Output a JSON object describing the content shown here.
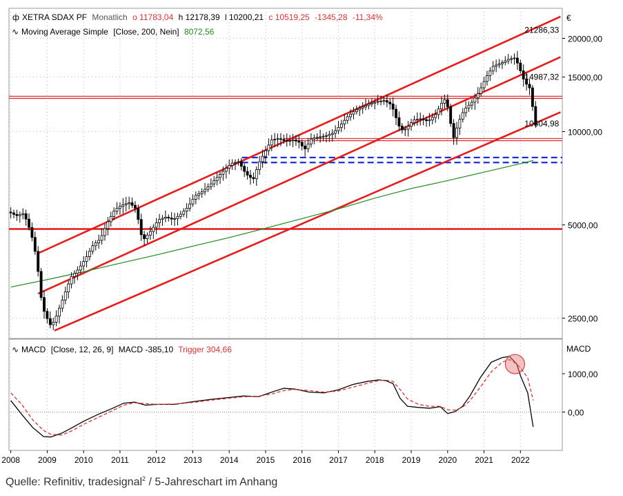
{
  "chart_data": [
    {
      "type": "line",
      "panel": "price",
      "scale": "log",
      "currency_label": "€",
      "legend": {
        "instrument": "XETRA SDAX PF",
        "interval": "Monatlich",
        "open": "o 11783,04",
        "high": "h 12178,39",
        "low": "l 10200,21",
        "close": "c 10519,25",
        "change": "-1345,28",
        "change_pct": "-11,34%",
        "ma_label": "Moving Average Simple",
        "ma_params": "[Close, 200, Nein]",
        "ma_value": "8072,56"
      },
      "y_ticks": [
        "20000,00",
        "15000,00",
        "10000,00",
        "5000,00",
        "2500,00"
      ],
      "y_tick_values": [
        20000,
        15000,
        10000,
        5000,
        2500
      ],
      "ylim": [
        2150,
        25000
      ],
      "x_ticks": [
        "2008",
        "2009",
        "2010",
        "2011",
        "2012",
        "2013",
        "2014",
        "2015",
        "2016",
        "2017",
        "2018",
        "2019",
        "2020",
        "2021",
        "2022"
      ],
      "x_tick_values": [
        2008,
        2009,
        2010,
        2011,
        2012,
        2013,
        2014,
        2015,
        2016,
        2017,
        2018,
        2019,
        2020,
        2021,
        2022
      ],
      "xlim": [
        2007.95,
        2023.15
      ],
      "annotations": [
        {
          "label": "21286,33",
          "value": 21286.33,
          "x": 2023.1
        },
        {
          "label": "14987,32",
          "value": 14987.32,
          "x": 2023.1
        },
        {
          "label": "10604,98",
          "value": 10604.98,
          "x": 2023.1
        }
      ],
      "price_series": {
        "x": [
          2008.0,
          2008.2,
          2008.4,
          2008.6,
          2008.75,
          2008.9,
          2009.0,
          2009.15,
          2009.3,
          2009.5,
          2009.7,
          2009.9,
          2010.1,
          2010.3,
          2010.5,
          2010.7,
          2010.9,
          2011.1,
          2011.3,
          2011.5,
          2011.6,
          2011.7,
          2011.9,
          2012.1,
          2012.3,
          2012.5,
          2012.7,
          2012.9,
          2013.1,
          2013.3,
          2013.5,
          2013.7,
          2013.9,
          2014.1,
          2014.3,
          2014.5,
          2014.7,
          2014.85,
          2015.0,
          2015.2,
          2015.4,
          2015.6,
          2015.8,
          2016.0,
          2016.1,
          2016.3,
          2016.5,
          2016.7,
          2016.9,
          2017.1,
          2017.3,
          2017.5,
          2017.7,
          2017.9,
          2018.1,
          2018.3,
          2018.5,
          2018.6,
          2018.75,
          2018.9,
          2019.1,
          2019.3,
          2019.5,
          2019.7,
          2019.9,
          2020.0,
          2020.2,
          2020.35,
          2020.5,
          2020.7,
          2020.9,
          2021.1,
          2021.3,
          2021.5,
          2021.7,
          2021.9,
          2022.0,
          2022.15,
          2022.3,
          2022.45
        ],
        "values": [
          5500,
          5350,
          5450,
          4700,
          3900,
          2750,
          2550,
          2350,
          2550,
          2950,
          3400,
          3600,
          3900,
          4300,
          4500,
          5100,
          5600,
          5800,
          5900,
          5600,
          4700,
          4500,
          4800,
          5200,
          5300,
          5200,
          5400,
          5700,
          6200,
          6400,
          6700,
          7100,
          7500,
          7900,
          8000,
          7300,
          7000,
          7900,
          8500,
          9400,
          9500,
          9300,
          9400,
          9200,
          8700,
          9500,
          9600,
          9700,
          9900,
          10500,
          11200,
          11700,
          12000,
          12300,
          12500,
          12600,
          12200,
          11300,
          10100,
          10200,
          10900,
          11000,
          10800,
          11300,
          12500,
          12800,
          9500,
          10800,
          11800,
          12400,
          13400,
          15000,
          16300,
          16600,
          17100,
          17300,
          16200,
          14500,
          13800,
          10520
        ]
      },
      "ma_series": {
        "name": "Moving Average Simple",
        "x": [
          2008.0,
          2009.0,
          2010.0,
          2011.0,
          2012.0,
          2013.0,
          2014.0,
          2015.0,
          2016.0,
          2017.0,
          2018.0,
          2019.0,
          2020.0,
          2021.0,
          2022.0,
          2022.35
        ],
        "values": [
          3150,
          3330,
          3530,
          3760,
          4000,
          4270,
          4550,
          4880,
          5240,
          5630,
          6100,
          6550,
          6950,
          7400,
          7880,
          8072.56
        ]
      },
      "channel_lines": [
        {
          "from": [
            2008.75,
            4050
          ],
          "to": [
            2023.1,
            23500
          ]
        },
        {
          "from": [
            2008.75,
            3000
          ],
          "to": [
            2023.1,
            17400
          ]
        },
        {
          "from": [
            2009.2,
            2280
          ],
          "to": [
            2023.1,
            11550
          ]
        }
      ],
      "horizontal_lines": [
        {
          "value": 13000,
          "color": "#e03030",
          "style": "solid"
        },
        {
          "value": 12800,
          "color": "#e03030",
          "style": "solid"
        },
        {
          "value": 9500,
          "color": "#e03030",
          "style": "solid",
          "from_x": 2015.5
        },
        {
          "value": 9350,
          "color": "#e03030",
          "style": "solid",
          "from_x": 2015.5
        },
        {
          "value": 4850,
          "color": "#e01818",
          "style": "solid"
        },
        {
          "value": 8250,
          "color": "#1a2fd0",
          "style": "dashed",
          "from_x": 2014.35
        },
        {
          "value": 7950,
          "color": "#1a2fd0",
          "style": "dashed",
          "from_x": 2014.35
        }
      ]
    },
    {
      "type": "line",
      "panel": "macd",
      "legend": {
        "label": "MACD",
        "params": "[Close, 12, 26, 9]",
        "macd_value": "MACD -385,10",
        "trigger_value": "Trigger 304,66"
      },
      "axis_title": "MACD",
      "y_ticks": [
        "1000,00",
        "0,00"
      ],
      "y_tick_values": [
        1000,
        0
      ],
      "ylim": [
        -1000,
        1900
      ],
      "series": [
        {
          "name": "MACD",
          "color": "#000000",
          "x": [
            2008.0,
            2008.3,
            2008.6,
            2008.9,
            2009.1,
            2009.4,
            2009.7,
            2010.0,
            2010.4,
            2010.8,
            2011.1,
            2011.4,
            2011.7,
            2012.0,
            2012.5,
            2013.0,
            2013.5,
            2014.0,
            2014.4,
            2014.8,
            2015.2,
            2015.5,
            2015.8,
            2016.2,
            2016.6,
            2017.0,
            2017.4,
            2017.8,
            2018.1,
            2018.3,
            2018.5,
            2018.7,
            2018.9,
            2019.2,
            2019.5,
            2019.8,
            2020.0,
            2020.2,
            2020.4,
            2020.6,
            2020.9,
            2021.2,
            2021.5,
            2021.7,
            2021.9,
            2022.0,
            2022.2,
            2022.35
          ],
          "values": [
            300,
            -60,
            -400,
            -640,
            -650,
            -550,
            -400,
            -240,
            -60,
            100,
            230,
            260,
            180,
            200,
            200,
            270,
            330,
            380,
            420,
            400,
            530,
            620,
            600,
            520,
            500,
            580,
            720,
            800,
            840,
            820,
            740,
            350,
            150,
            120,
            100,
            140,
            -40,
            10,
            140,
            400,
            900,
            1300,
            1420,
            1450,
            1250,
            950,
            500,
            -385.1
          ]
        },
        {
          "name": "Trigger",
          "color": "#e03030",
          "x": [
            2008.0,
            2008.3,
            2008.6,
            2008.9,
            2009.1,
            2009.4,
            2009.7,
            2010.0,
            2010.4,
            2010.8,
            2011.1,
            2011.4,
            2011.7,
            2012.0,
            2012.5,
            2013.0,
            2013.5,
            2014.0,
            2014.4,
            2014.8,
            2015.2,
            2015.5,
            2015.8,
            2016.2,
            2016.6,
            2017.0,
            2017.4,
            2017.8,
            2018.1,
            2018.3,
            2018.5,
            2018.7,
            2018.9,
            2019.2,
            2019.5,
            2019.8,
            2020.0,
            2020.2,
            2020.4,
            2020.6,
            2020.9,
            2021.2,
            2021.5,
            2021.7,
            2021.9,
            2022.0,
            2022.2,
            2022.35
          ],
          "values": [
            500,
            200,
            -200,
            -480,
            -580,
            -600,
            -480,
            -320,
            -140,
            40,
            180,
            240,
            220,
            200,
            210,
            250,
            310,
            360,
            400,
            410,
            480,
            560,
            590,
            560,
            520,
            550,
            650,
            750,
            820,
            830,
            800,
            580,
            340,
            200,
            150,
            150,
            60,
            50,
            120,
            280,
            650,
            1050,
            1300,
            1370,
            1250,
            1150,
            900,
            304.66
          ]
        }
      ],
      "zero_line": true,
      "highlight_circle": {
        "x": 2021.85,
        "y": 1250
      }
    }
  ],
  "x_axis": {
    "labels": [
      "2008",
      "2009",
      "2010",
      "2011",
      "2012",
      "2013",
      "2014",
      "2015",
      "2016",
      "2017",
      "2018",
      "2019",
      "2020",
      "2021",
      "2022"
    ]
  },
  "source": {
    "text_before": "Quelle: Refinitiv, tradesignal",
    "superscript": "2",
    "text_after": " / 5-Jahreschart im Anhang"
  },
  "colors": {
    "up_candle": "#ffffff",
    "down_candle": "#000000",
    "channel": "#e81a1a",
    "horizontal_red": "#e03030",
    "support_blue": "#1a2fd0",
    "moving_average": "#1f8a1f",
    "macd": "#000000",
    "trigger": "#e03030",
    "legend_red": "#e03030",
    "legend_green": "#1f8a1f",
    "legend_gray": "#555555"
  }
}
